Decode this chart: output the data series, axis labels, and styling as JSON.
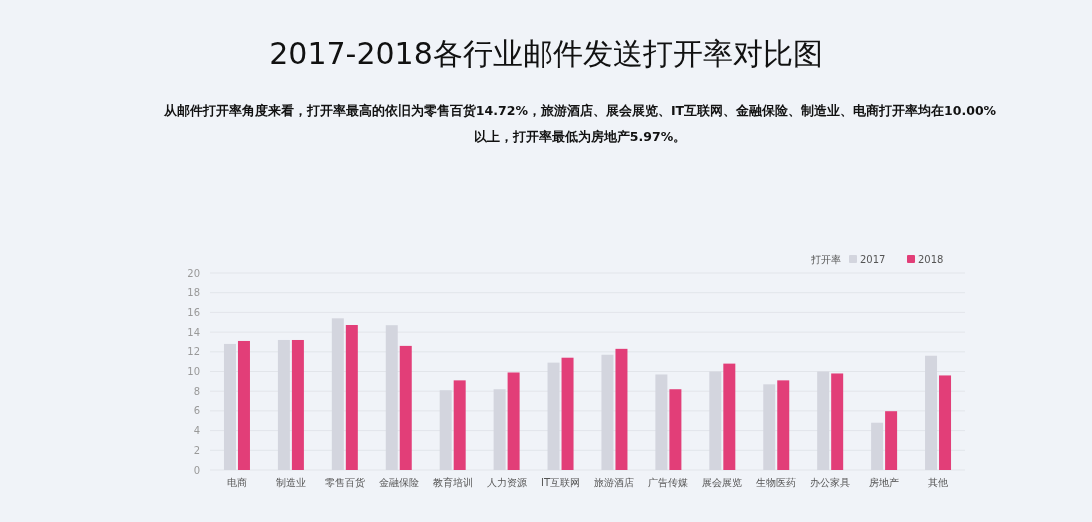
{
  "chart_data": {
    "type": "bar",
    "title": "2017-2018各行业邮件发送打开率对比图",
    "subtitle": "从邮件打开率角度来看，打开率最高的依旧为零售百货14.72%，旅游酒店、展会展览、IT互联网、金融保险、制造业、电商打开率均在10.00%以上，打开率最低为房地产5.97%。",
    "categories": [
      "电商",
      "制造业",
      "零售百货",
      "金融保险",
      "教育培训",
      "人力资源",
      "IT互联网",
      "旅游酒店",
      "广告传媒",
      "展会展览",
      "生物医药",
      "办公家具",
      "房地产",
      "其他"
    ],
    "series": [
      {
        "name": "2017",
        "color": "#d3d5de",
        "values": [
          12.8,
          13.2,
          15.4,
          14.7,
          8.1,
          8.2,
          10.9,
          11.7,
          9.7,
          10.0,
          8.7,
          10.0,
          4.8,
          11.6
        ]
      },
      {
        "name": "2018",
        "color": "#e23e78",
        "values": [
          13.1,
          13.2,
          14.72,
          12.6,
          9.1,
          9.9,
          11.4,
          12.3,
          8.2,
          10.8,
          9.1,
          9.8,
          5.97,
          9.6
        ]
      }
    ],
    "legend_title": "打开率",
    "ylim": [
      0,
      20
    ],
    "yticks": [
      0,
      2,
      4,
      6,
      8,
      10,
      12,
      14,
      16,
      18,
      20
    ],
    "grid": "y",
    "legend": "top right"
  }
}
